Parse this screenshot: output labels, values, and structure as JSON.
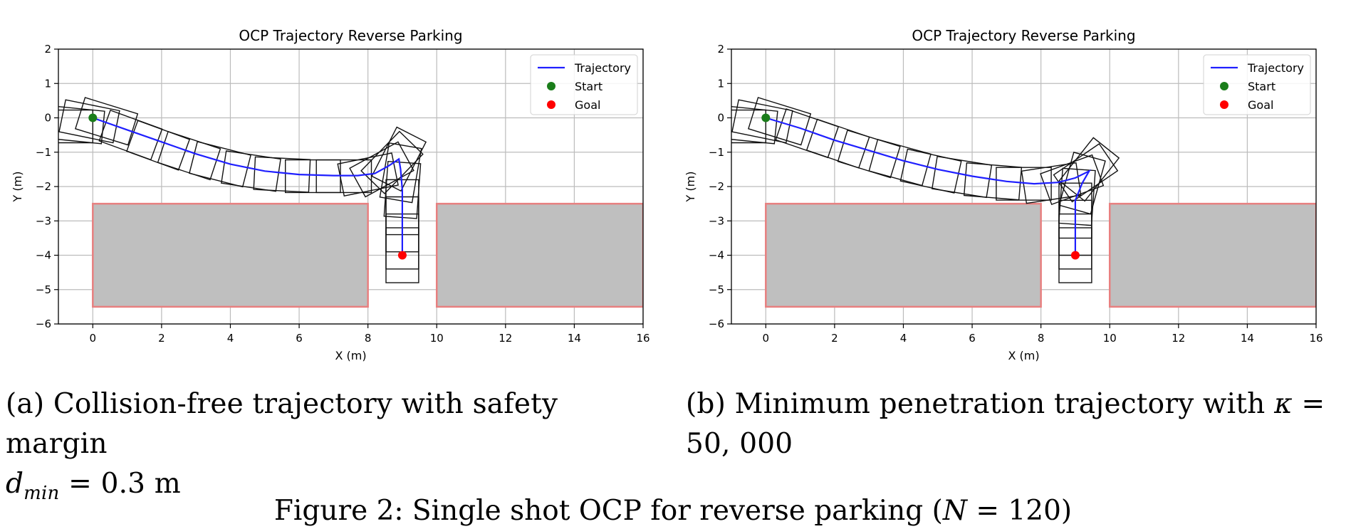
{
  "chart_data": [
    {
      "type": "line",
      "title": "OCP Trajectory Reverse Parking",
      "xlabel": "X (m)",
      "ylabel": "Y (m)",
      "xlim": [
        -1,
        16
      ],
      "ylim": [
        -6,
        2
      ],
      "xticks": [
        0,
        2,
        4,
        6,
        8,
        10,
        12,
        14,
        16
      ],
      "yticks": [
        2,
        1,
        0,
        -1,
        -2,
        -3,
        -4,
        -5,
        -6
      ],
      "grid": true,
      "legend_position": "top-right",
      "legend": [
        "Trajectory",
        "Start",
        "Goal"
      ],
      "obstacles": [
        {
          "x": [
            0,
            8
          ],
          "y": [
            -5.5,
            -2.5
          ]
        },
        {
          "x": [
            10,
            16
          ],
          "y": [
            -5.5,
            -2.5
          ]
        }
      ],
      "series": [
        {
          "name": "Trajectory",
          "x": [
            0,
            1,
            2,
            3,
            4,
            5,
            6,
            7,
            7.7,
            8.2,
            8.6,
            8.9,
            8.95,
            9.0,
            9.0,
            9.0
          ],
          "y": [
            0,
            -0.35,
            -0.7,
            -1.05,
            -1.35,
            -1.55,
            -1.65,
            -1.68,
            -1.68,
            -1.62,
            -1.4,
            -1.2,
            -1.5,
            -2.1,
            -3.0,
            -4.0
          ]
        }
      ],
      "car_poses": [
        {
          "x": -0.8,
          "y": -0.25,
          "theta": 0
        },
        {
          "x": -0.5,
          "y": -0.2,
          "theta": -0.1
        },
        {
          "x": -0.1,
          "y": -0.1,
          "theta": -0.2
        },
        {
          "x": 0.4,
          "y": -0.1,
          "theta": -0.3
        },
        {
          "x": 1.1,
          "y": -0.5,
          "theta": -0.35
        },
        {
          "x": 1.9,
          "y": -0.8,
          "theta": -0.35
        },
        {
          "x": 2.8,
          "y": -1.1,
          "theta": -0.32
        },
        {
          "x": 3.7,
          "y": -1.35,
          "theta": -0.25
        },
        {
          "x": 4.6,
          "y": -1.55,
          "theta": -0.15
        },
        {
          "x": 5.5,
          "y": -1.65,
          "theta": -0.05
        },
        {
          "x": 6.4,
          "y": -1.7,
          "theta": 0
        },
        {
          "x": 7.3,
          "y": -1.7,
          "theta": 0
        },
        {
          "x": 8.0,
          "y": -1.65,
          "theta": 0.2
        },
        {
          "x": 8.4,
          "y": -1.5,
          "theta": 0.5
        },
        {
          "x": 8.7,
          "y": -1.3,
          "theta": 0.8
        },
        {
          "x": 8.9,
          "y": -1.2,
          "theta": 1.1
        },
        {
          "x": 8.95,
          "y": -1.6,
          "theta": 1.4
        },
        {
          "x": 9.0,
          "y": -2.1,
          "theta": 1.5
        },
        {
          "x": 9.0,
          "y": -2.6,
          "theta": 1.57
        },
        {
          "x": 9.0,
          "y": -3.1,
          "theta": 1.57
        },
        {
          "x": 9.0,
          "y": -3.6,
          "theta": 1.57
        },
        {
          "x": 9.0,
          "y": -4.0,
          "theta": 1.57
        }
      ],
      "start": {
        "x": 0,
        "y": 0
      },
      "goal": {
        "x": 9,
        "y": -4
      }
    },
    {
      "type": "line",
      "title": "OCP Trajectory Reverse Parking",
      "xlabel": "X (m)",
      "ylabel": "Y (m)",
      "xlim": [
        -1,
        16
      ],
      "ylim": [
        -6,
        2
      ],
      "xticks": [
        0,
        2,
        4,
        6,
        8,
        10,
        12,
        14,
        16
      ],
      "yticks": [
        2,
        1,
        0,
        -1,
        -2,
        -3,
        -4,
        -5,
        -6
      ],
      "grid": true,
      "legend_position": "top-right",
      "legend": [
        "Trajectory",
        "Start",
        "Goal"
      ],
      "obstacles": [
        {
          "x": [
            0,
            8
          ],
          "y": [
            -5.5,
            -2.5
          ]
        },
        {
          "x": [
            10,
            16
          ],
          "y": [
            -5.5,
            -2.5
          ]
        }
      ],
      "series": [
        {
          "name": "Trajectory",
          "x": [
            0,
            1,
            2,
            3,
            4,
            5,
            6,
            7,
            7.8,
            8.5,
            9.0,
            9.4,
            9.2,
            9.0,
            9.0,
            9.0
          ],
          "y": [
            0,
            -0.3,
            -0.65,
            -0.95,
            -1.25,
            -1.5,
            -1.7,
            -1.85,
            -1.92,
            -1.88,
            -1.75,
            -1.55,
            -1.9,
            -2.4,
            -3.1,
            -4.0
          ]
        }
      ],
      "car_poses": [
        {
          "x": -0.8,
          "y": -0.25,
          "theta": 0
        },
        {
          "x": -0.5,
          "y": -0.2,
          "theta": -0.1
        },
        {
          "x": -0.1,
          "y": -0.1,
          "theta": -0.2
        },
        {
          "x": 0.4,
          "y": -0.1,
          "theta": -0.3
        },
        {
          "x": 1.2,
          "y": -0.45,
          "theta": -0.33
        },
        {
          "x": 2.1,
          "y": -0.75,
          "theta": -0.33
        },
        {
          "x": 3.0,
          "y": -1.05,
          "theta": -0.3
        },
        {
          "x": 3.9,
          "y": -1.3,
          "theta": -0.27
        },
        {
          "x": 4.8,
          "y": -1.55,
          "theta": -0.22
        },
        {
          "x": 5.7,
          "y": -1.72,
          "theta": -0.16
        },
        {
          "x": 6.6,
          "y": -1.85,
          "theta": -0.08
        },
        {
          "x": 7.5,
          "y": -1.92,
          "theta": 0
        },
        {
          "x": 8.3,
          "y": -1.9,
          "theta": 0.15
        },
        {
          "x": 8.9,
          "y": -1.8,
          "theta": 0.35
        },
        {
          "x": 9.3,
          "y": -1.6,
          "theta": 0.6
        },
        {
          "x": 9.4,
          "y": -1.5,
          "theta": 0.9
        },
        {
          "x": 9.2,
          "y": -1.9,
          "theta": 1.3
        },
        {
          "x": 9.05,
          "y": -2.3,
          "theta": 1.5
        },
        {
          "x": 9.0,
          "y": -2.7,
          "theta": 1.57
        },
        {
          "x": 9.0,
          "y": -3.2,
          "theta": 1.57
        },
        {
          "x": 9.0,
          "y": -3.6,
          "theta": 1.57
        },
        {
          "x": 9.0,
          "y": -4.0,
          "theta": 1.57
        }
      ],
      "start": {
        "x": 0,
        "y": 0
      },
      "goal": {
        "x": 9,
        "y": -4
      }
    }
  ],
  "colors": {
    "trajectory": "#1f1fff",
    "start": "#1a7d1a",
    "goal": "#ff0000",
    "obstacle_fill": "#bfbfbf",
    "obstacle_edge": "#e88080",
    "grid": "#bcbcbc"
  },
  "captions": {
    "a_line1": "(a) Collision-free trajectory with safety margin",
    "a_line2_var": "d",
    "a_line2_sub": "min",
    "a_line2_rest": " = 0.3 m",
    "b_line1": "(b) Minimum penetration trajectory with",
    "b_line1_var": "κ",
    "b_line1_eq": " =",
    "b_line2": "50, 000",
    "figure_prefix": "Figure 2: Single shot OCP for reverse parking (",
    "figure_var": "N",
    "figure_suffix": " = 120)"
  }
}
